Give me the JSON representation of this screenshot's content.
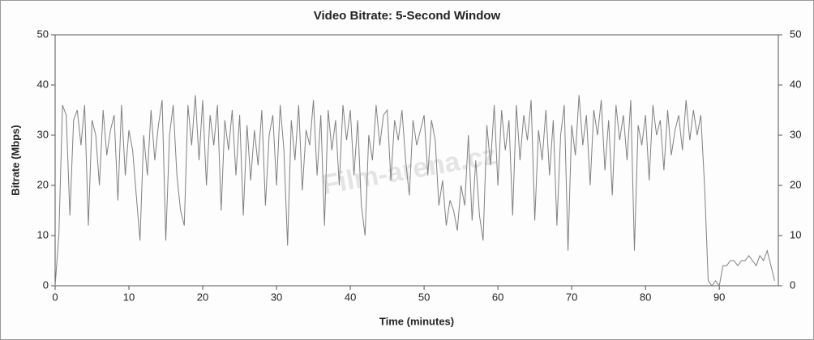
{
  "chart_data": {
    "type": "line",
    "title": "Video Bitrate: 5-Second Window",
    "x_label": "Time (minutes)",
    "y_label": "Bitrate (Mbps)",
    "watermark": "Film-arena.cz",
    "color": "#808080",
    "xlim": [
      0,
      98
    ],
    "xticks": [
      0,
      10,
      20,
      30,
      40,
      50,
      60,
      70,
      80,
      90
    ],
    "ylim": [
      0,
      50
    ],
    "yticks": [
      0,
      10,
      20,
      30,
      40,
      50
    ],
    "y2lim": [
      0,
      50
    ],
    "y2ticks": [
      0,
      10,
      20,
      30,
      40,
      50
    ],
    "x": [
      0,
      0.5,
      1,
      1.5,
      2,
      2.5,
      3,
      3.5,
      4,
      4.5,
      5,
      5.5,
      6,
      6.5,
      7,
      7.5,
      8,
      8.5,
      9,
      9.5,
      10,
      10.5,
      11,
      11.5,
      12,
      12.5,
      13,
      13.5,
      14,
      14.5,
      15,
      15.5,
      16,
      16.5,
      17,
      17.5,
      18,
      18.5,
      19,
      19.5,
      20,
      20.5,
      21,
      21.5,
      22,
      22.5,
      23,
      23.5,
      24,
      24.5,
      25,
      25.5,
      26,
      26.5,
      27,
      27.5,
      28,
      28.5,
      29,
      29.5,
      30,
      30.5,
      31,
      31.5,
      32,
      32.5,
      33,
      33.5,
      34,
      34.5,
      35,
      35.5,
      36,
      36.5,
      37,
      37.5,
      38,
      38.5,
      39,
      39.5,
      40,
      40.5,
      41,
      41.5,
      42,
      42.5,
      43,
      43.5,
      44,
      44.5,
      45,
      45.5,
      46,
      46.5,
      47,
      47.5,
      48,
      48.5,
      49,
      49.5,
      50,
      50.5,
      51,
      51.5,
      52,
      52.5,
      53,
      53.5,
      54,
      54.5,
      55,
      55.5,
      56,
      56.5,
      57,
      57.5,
      58,
      58.5,
      59,
      59.5,
      60,
      60.5,
      61,
      61.5,
      62,
      62.5,
      63,
      63.5,
      64,
      64.5,
      65,
      65.5,
      66,
      66.5,
      67,
      67.5,
      68,
      68.5,
      69,
      69.5,
      70,
      70.5,
      71,
      71.5,
      72,
      72.5,
      73,
      73.5,
      74,
      74.5,
      75,
      75.5,
      76,
      76.5,
      77,
      77.5,
      78,
      78.5,
      79,
      79.5,
      80,
      80.5,
      81,
      81.5,
      82,
      82.5,
      83,
      83.5,
      84,
      84.5,
      85,
      85.5,
      86,
      86.5,
      87,
      87.5,
      88,
      88.5,
      89,
      89.5,
      90,
      90.5,
      91,
      91.5,
      92,
      92.5,
      93,
      93.5,
      94,
      94.5,
      95,
      95.5,
      96,
      96.5,
      97,
      97.5
    ],
    "values": [
      0,
      10,
      36,
      34,
      14,
      33,
      35,
      28,
      36,
      12,
      33,
      30,
      20,
      35,
      26,
      31,
      34,
      17,
      36,
      22,
      31,
      27,
      18,
      9,
      30,
      22,
      35,
      25,
      32,
      37,
      9,
      30,
      36,
      22,
      15,
      12,
      36,
      28,
      38,
      25,
      37,
      20,
      34,
      28,
      36,
      15,
      33,
      27,
      35,
      22,
      34,
      14,
      32,
      21,
      31,
      24,
      35,
      16,
      30,
      34,
      20,
      36,
      27,
      8,
      33,
      25,
      36,
      19,
      31,
      28,
      37,
      22,
      34,
      12,
      35,
      27,
      33,
      20,
      36,
      29,
      35,
      22,
      33,
      16,
      10,
      30,
      25,
      36,
      28,
      34,
      35,
      21,
      33,
      29,
      35,
      25,
      18,
      33,
      28,
      31,
      34,
      22,
      33,
      29,
      16,
      21,
      12,
      17,
      15,
      11,
      20,
      16,
      30,
      13,
      25,
      14,
      9,
      32,
      24,
      36,
      20,
      35,
      27,
      33,
      14,
      36,
      25,
      34,
      29,
      37,
      13,
      31,
      25,
      35,
      22,
      33,
      12,
      30,
      36,
      7,
      32,
      26,
      38,
      28,
      34,
      20,
      35,
      30,
      37,
      23,
      33,
      18,
      36,
      29,
      34,
      25,
      37,
      7,
      32,
      28,
      34,
      21,
      36,
      30,
      33,
      23,
      35,
      26,
      31,
      34,
      27,
      37,
      29,
      35,
      30,
      34,
      20,
      1,
      0,
      1,
      0,
      4,
      4,
      5,
      5,
      4,
      5,
      5,
      6,
      5,
      4,
      6,
      5,
      7,
      4,
      1
    ]
  }
}
